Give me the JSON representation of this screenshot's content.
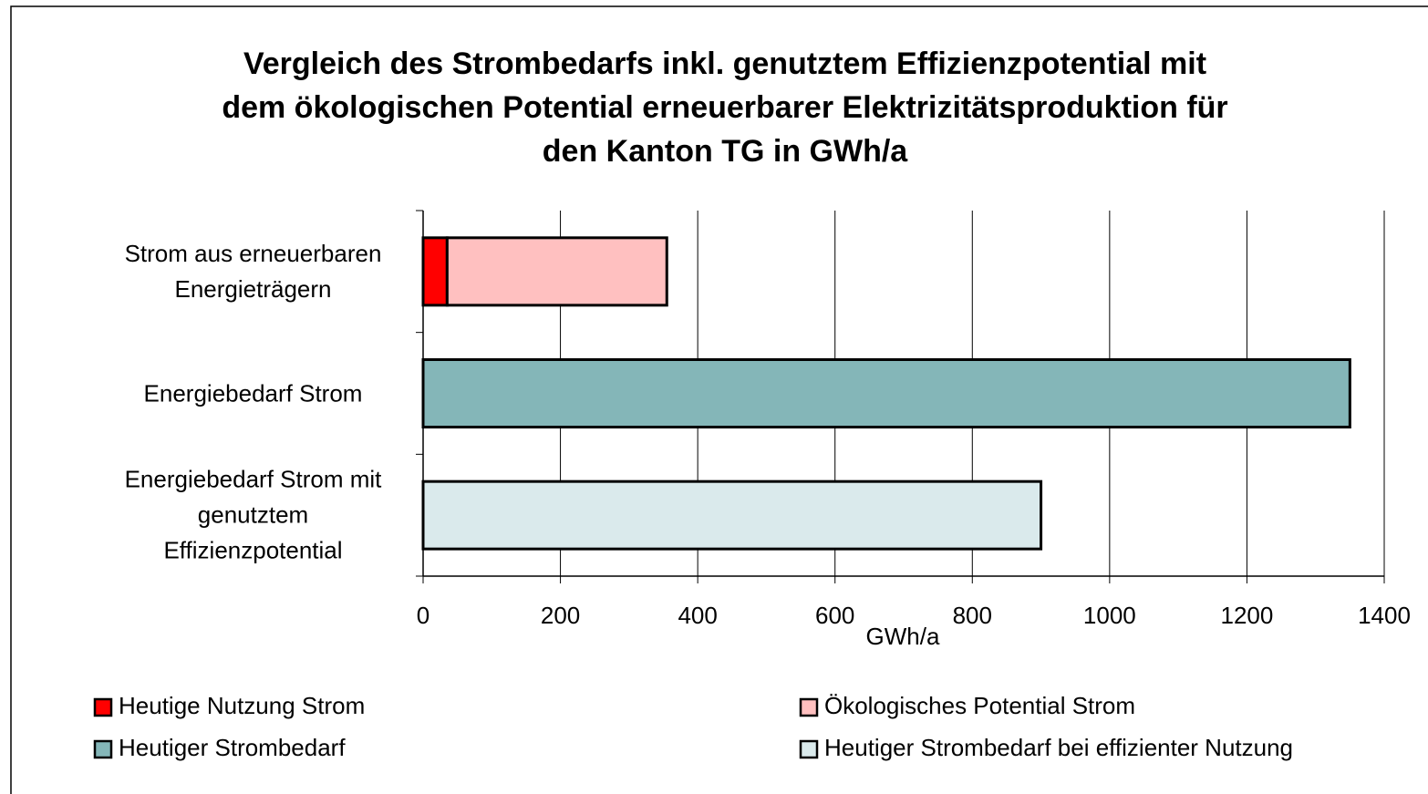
{
  "chart_data": {
    "type": "bar",
    "orientation": "horizontal",
    "stacked": true,
    "title": "Vergleich des Strombedarfs inkl. genutztem Effizienzpotential mit\ndem ökologischen Potential erneuerbarer Elektrizitätsproduktion für\nden Kanton TG in GWh/a",
    "x_label": "GWh/a",
    "categories": [
      "Strom aus erneuerbaren\nEnergieträgern",
      "Energiebedarf Strom",
      "Energiebedarf Strom mit\ngenutztem\nEffizienzpotential"
    ],
    "series": [
      {
        "name": "Heutige Nutzung Strom",
        "color": "#ff0000",
        "values": [
          35,
          null,
          null
        ]
      },
      {
        "name": "Ökologisches Potential Strom",
        "color": "#ffc0c0",
        "values": [
          320,
          null,
          null
        ]
      },
      {
        "name": "Heutiger Strombedarf",
        "color": "#84b6b8",
        "values": [
          null,
          1350,
          null
        ]
      },
      {
        "name": "Heutiger Strombedarf bei effizienter Nutzung",
        "color": "#daeaec",
        "values": [
          null,
          null,
          900
        ]
      }
    ],
    "xlim": [
      0,
      1400
    ],
    "xticks": [
      0,
      200,
      400,
      600,
      800,
      1000,
      1200,
      1400
    ],
    "grid": true
  }
}
